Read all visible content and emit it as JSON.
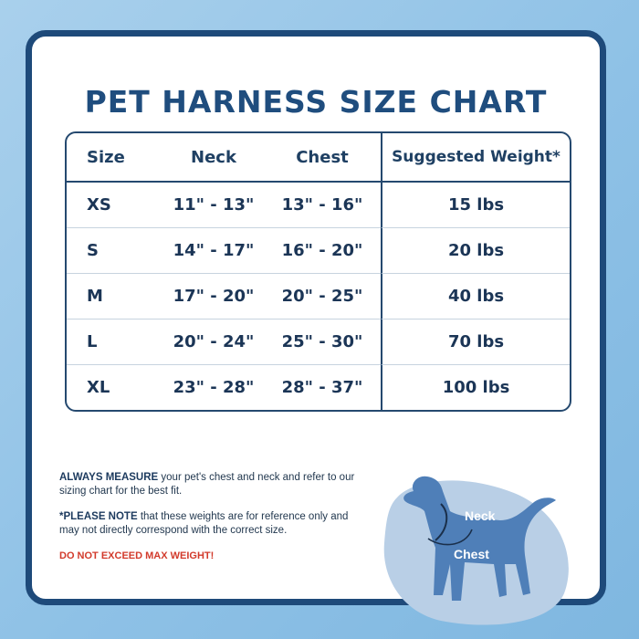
{
  "title": "PET HARNESS SIZE CHART",
  "table": {
    "headers": [
      "Size",
      "Neck",
      "Chest",
      "Suggested Weight*"
    ],
    "rows": [
      {
        "size": "XS",
        "neck": "11\" - 13\"",
        "chest": "13\" - 16\"",
        "weight": "15 lbs"
      },
      {
        "size": "S",
        "neck": "14\" - 17\"",
        "chest": "16\" - 20\"",
        "weight": "20 lbs"
      },
      {
        "size": "M",
        "neck": "17\" - 20\"",
        "chest": "20\" - 25\"",
        "weight": "40  lbs"
      },
      {
        "size": "L",
        "neck": "20\" - 24\"",
        "chest": "25\" - 30\"",
        "weight": "70 lbs"
      },
      {
        "size": "XL",
        "neck": "23\" - 28\"",
        "chest": "28\" - 37\"",
        "weight": "100 lbs"
      }
    ]
  },
  "notes": {
    "measure_bold": "ALWAYS MEASURE",
    "measure_text": " your pet's chest and neck and refer to our sizing chart for the best fit.",
    "note_bold": "*PLEASE NOTE",
    "note_text": " that these weights are for reference only and may not directly correspond with the correct size.",
    "warning": "DO NOT EXCEED MAX WEIGHT!"
  },
  "diagram": {
    "neck_label": "Neck",
    "chest_label": "Chest"
  },
  "colors": {
    "navy": "#1f4d7e",
    "frame": "#1e4a7a",
    "warning_red": "#d23a2b",
    "dog_blue": "#4f7fb8",
    "blob_blue": "#b9cfe6"
  }
}
